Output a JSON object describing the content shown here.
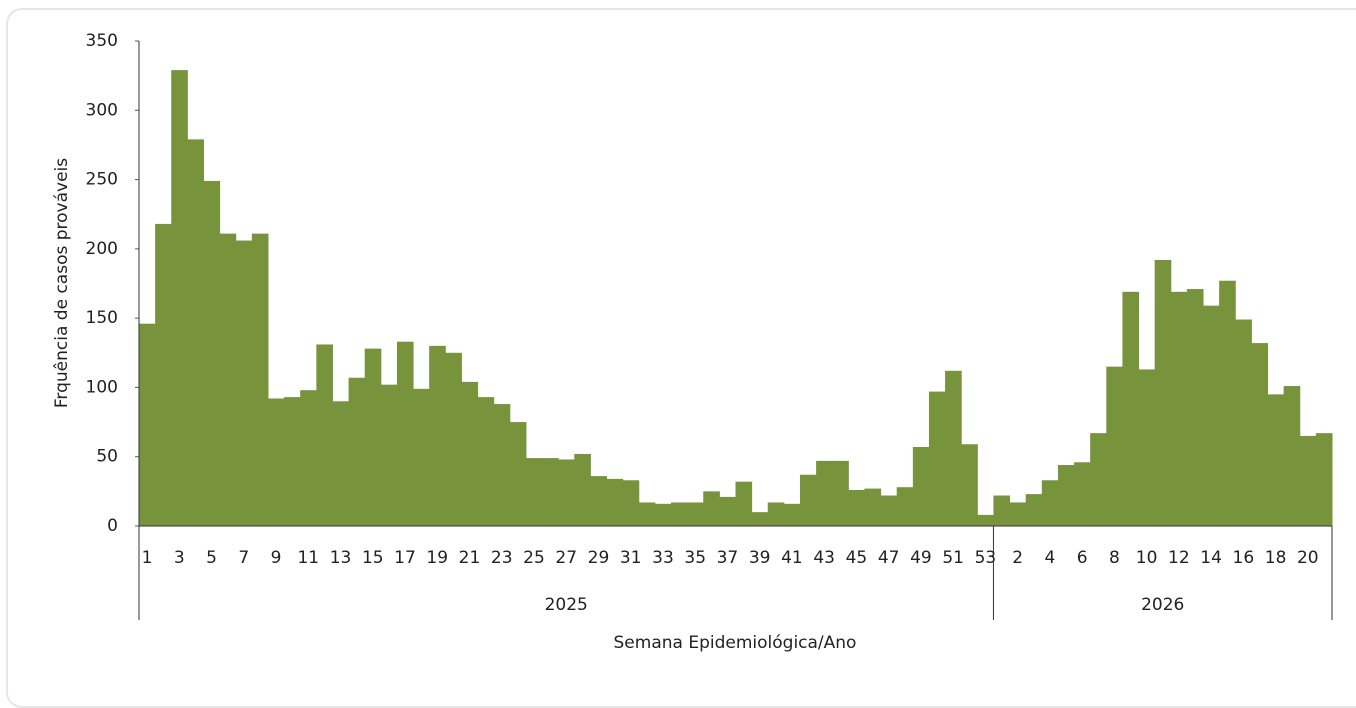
{
  "chart_data": {
    "type": "bar",
    "y_axis_label": "Frquência de casos prováveis",
    "x_axis_label": "Semana Epidemiológica/Ano",
    "color": "#77933c",
    "ylim": [
      0,
      350
    ],
    "yticks": [
      0,
      50,
      100,
      150,
      200,
      250,
      300,
      350
    ],
    "groups": [
      {
        "label": "2025",
        "categories": [
          "1",
          null,
          "3",
          null,
          "5",
          null,
          "7",
          null,
          "9",
          null,
          "11",
          null,
          "13",
          null,
          "15",
          null,
          "17",
          null,
          "19",
          null,
          "21",
          null,
          "23",
          null,
          "25",
          null,
          "27",
          null,
          "29",
          null,
          "31",
          null,
          "33",
          null,
          "35",
          null,
          "37",
          null,
          "39",
          null,
          "41",
          null,
          "43",
          null,
          "45",
          null,
          "47",
          null,
          "49",
          null,
          "51",
          null,
          "53"
        ],
        "values": [
          146,
          218,
          329,
          279,
          249,
          211,
          206,
          211,
          92,
          93,
          98,
          131,
          90,
          107,
          128,
          102,
          133,
          99,
          130,
          125,
          104,
          93,
          88,
          75,
          49,
          49,
          48,
          52,
          36,
          34,
          33,
          17,
          16,
          17,
          17,
          25,
          21,
          32,
          10,
          17,
          16,
          37,
          47,
          47,
          26,
          27,
          22,
          28,
          57,
          97,
          112,
          59,
          8
        ]
      },
      {
        "label": "2026",
        "categories": [
          null,
          "2",
          null,
          "4",
          null,
          "6",
          null,
          "8",
          null,
          "10",
          null,
          "12",
          null,
          "14",
          null,
          "16",
          null,
          "18",
          null,
          "20",
          null
        ],
        "values": [
          22,
          17,
          23,
          33,
          44,
          46,
          67,
          115,
          169,
          113,
          192,
          169,
          171,
          159,
          177,
          149,
          132,
          95,
          101,
          65,
          67
        ]
      }
    ]
  }
}
